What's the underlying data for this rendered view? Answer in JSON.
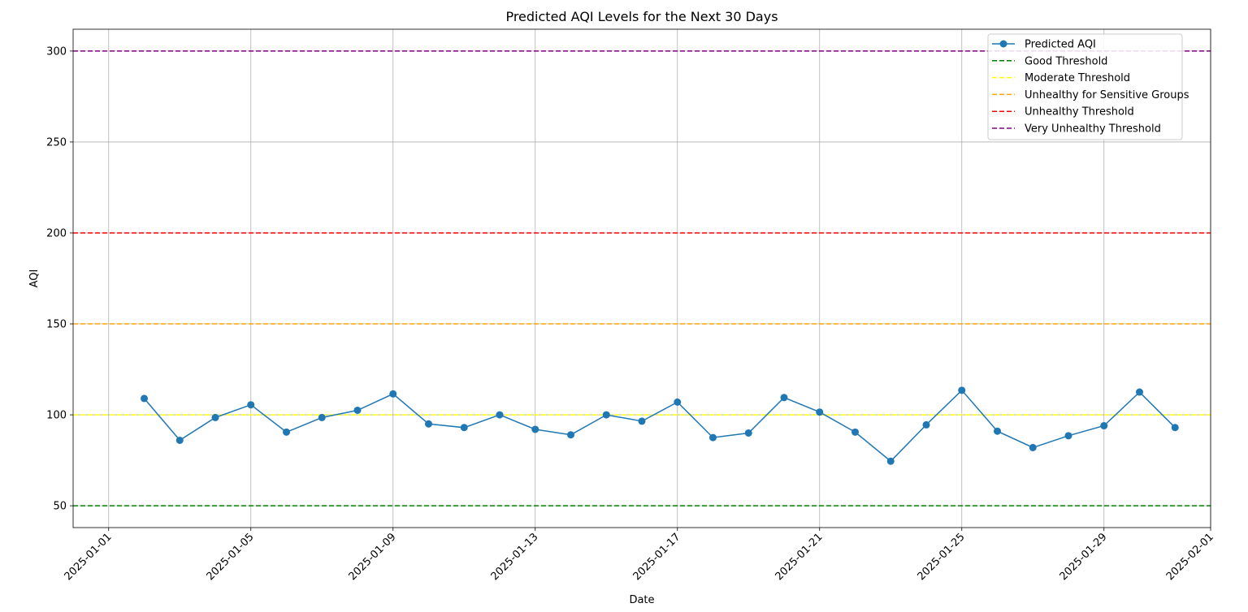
{
  "chart_data": {
    "type": "line",
    "title": "Predicted AQI Levels for the Next 30 Days",
    "xlabel": "Date",
    "ylabel": "AQI",
    "xlim": [
      "2024-12-31",
      "2025-02-01"
    ],
    "ylim": [
      38,
      312
    ],
    "grid": true,
    "legend_position": "top-right",
    "x_ticks": [
      "2025-01-01",
      "2025-01-05",
      "2025-01-09",
      "2025-01-13",
      "2025-01-17",
      "2025-01-21",
      "2025-01-25",
      "2025-01-29",
      "2025-02-01"
    ],
    "y_ticks": [
      50,
      100,
      150,
      200,
      250,
      300
    ],
    "series": [
      {
        "name": "Predicted AQI",
        "color": "#1f77b4",
        "marker": "circle",
        "x": [
          "2025-01-02",
          "2025-01-03",
          "2025-01-04",
          "2025-01-05",
          "2025-01-06",
          "2025-01-07",
          "2025-01-08",
          "2025-01-09",
          "2025-01-10",
          "2025-01-11",
          "2025-01-12",
          "2025-01-13",
          "2025-01-14",
          "2025-01-15",
          "2025-01-16",
          "2025-01-17",
          "2025-01-18",
          "2025-01-19",
          "2025-01-20",
          "2025-01-21",
          "2025-01-22",
          "2025-01-23",
          "2025-01-24",
          "2025-01-25",
          "2025-01-26",
          "2025-01-27",
          "2025-01-28",
          "2025-01-29",
          "2025-01-30",
          "2025-01-31"
        ],
        "values": [
          109,
          86,
          98.5,
          105.5,
          90.5,
          98.5,
          102.5,
          111.5,
          95,
          93,
          100,
          92,
          89,
          100,
          96.5,
          107,
          87.5,
          90,
          109.5,
          101.5,
          90.5,
          74.5,
          94.5,
          113.5,
          91,
          82,
          88.5,
          94,
          112.5,
          93
        ]
      }
    ],
    "thresholds": [
      {
        "name": "Good Threshold",
        "value": 50,
        "color": "#008000"
      },
      {
        "name": "Moderate Threshold",
        "value": 100,
        "color": "#ffff00"
      },
      {
        "name": "Unhealthy for Sensitive Groups",
        "value": 150,
        "color": "#ffa500"
      },
      {
        "name": "Unhealthy Threshold",
        "value": 200,
        "color": "#ff0000"
      },
      {
        "name": "Very Unhealthy Threshold",
        "value": 300,
        "color": "#800080"
      }
    ]
  }
}
